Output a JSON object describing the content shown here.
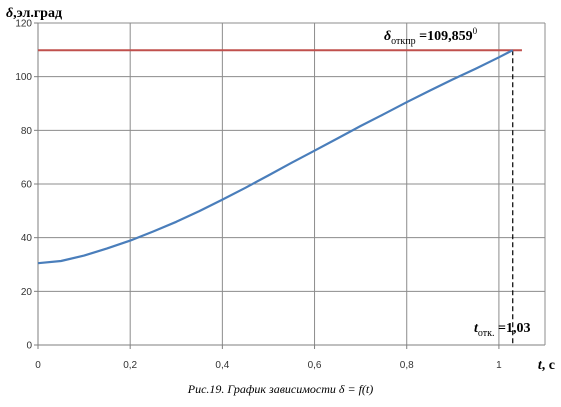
{
  "chart_data": {
    "type": "line",
    "ylabel_symbol": "δ",
    "ylabel_text": ",эл.град",
    "xlabel_symbol": "t",
    "xlabel_text": ", с",
    "xlim": [
      0,
      1.1
    ],
    "ylim": [
      0,
      120
    ],
    "x_ticks": [
      0,
      0.2,
      0.4,
      0.6,
      0.8,
      1
    ],
    "x_tick_labels": [
      "0",
      "0,2",
      "0,4",
      "0,6",
      "0,8",
      "1"
    ],
    "y_ticks": [
      0,
      20,
      40,
      60,
      80,
      100,
      120
    ],
    "y_tick_labels": [
      "0",
      "20",
      "40",
      "60",
      "80",
      "100",
      "120"
    ],
    "grid": true,
    "series": [
      {
        "color": "#4a7ebb",
        "x": [
          0,
          0.05,
          0.1,
          0.15,
          0.2,
          0.25,
          0.3,
          0.35,
          0.4,
          0.45,
          0.5,
          0.55,
          0.6,
          0.65,
          0.7,
          0.75,
          0.8,
          0.85,
          0.9,
          0.95,
          1.0,
          1.03
        ],
        "y": [
          30.5,
          31.3,
          33.3,
          36.0,
          38.9,
          42.3,
          45.9,
          49.9,
          54.2,
          58.6,
          63.2,
          67.9,
          72.4,
          77.0,
          81.6,
          86.0,
          90.5,
          94.8,
          99.0,
          103.0,
          107.2,
          109.86
        ]
      }
    ],
    "limit_line": {
      "y": 109.859,
      "x_range": [
        0,
        1.05
      ],
      "color": "#c0504d"
    },
    "vline": {
      "x": 1.03,
      "style": "dashed",
      "color": "#000000"
    },
    "annotations": {
      "delta": {
        "symbol": "δ",
        "subscript": "откпр",
        "value": " =109,859",
        "superscript": "0"
      },
      "t": {
        "symbol": "t",
        "subscript": "отк.",
        "value": " =1,03"
      }
    }
  },
  "caption": "Рис.19. График зависимости δ = f(t)"
}
